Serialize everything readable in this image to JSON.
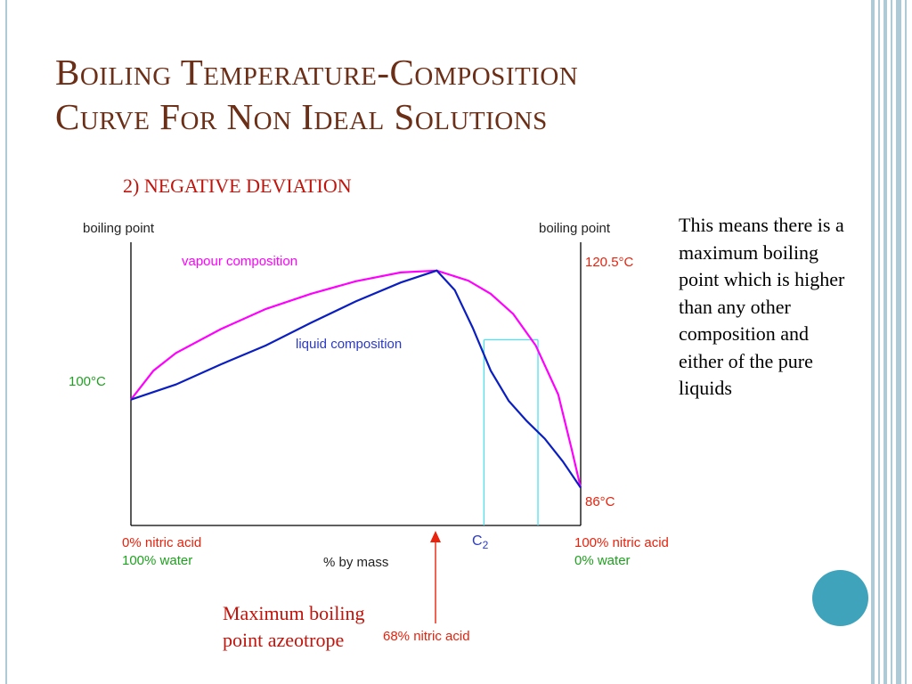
{
  "slide": {
    "title_line1": "Boiling Temperature-Composition",
    "title_line2": "Curve For Non Ideal Solutions",
    "subtitle": "2) NEGATIVE DEVIATION",
    "description": "This means there is a maximum boiling point which is higher than any other composition and either of the pure liquids",
    "annotation": "Maximum boiling point azeotrope"
  },
  "colors": {
    "title": "#6b2e16",
    "accent_red": "#c0140c",
    "vapour_curve": "#ff00ff",
    "liquid_curve": "#0b1fc0",
    "guide_lines": "#4ee0f0",
    "label_green": "#20a020",
    "label_red": "#e8220c",
    "label_blue": "#2a3ac8",
    "frame": "#aecad6",
    "decor_circle": "#3ea3bb"
  },
  "chart_data": {
    "type": "line",
    "x_unit": "% nitric acid by mass",
    "xlim": [
      0,
      100
    ],
    "ylim": [
      80,
      125
    ],
    "series": [
      {
        "name": "vapour composition",
        "points": [
          [
            0,
            100
          ],
          [
            5,
            104.6
          ],
          [
            10,
            107.4
          ],
          [
            20,
            111.2
          ],
          [
            30,
            114.4
          ],
          [
            40,
            116.8
          ],
          [
            50,
            118.8
          ],
          [
            60,
            120.2
          ],
          [
            68,
            120.5
          ],
          [
            75,
            118.9
          ],
          [
            80,
            116.8
          ],
          [
            85,
            113.6
          ],
          [
            90,
            108.6
          ],
          [
            95,
            100.8
          ],
          [
            98,
            92.1
          ],
          [
            100,
            86
          ]
        ]
      },
      {
        "name": "liquid composition",
        "points": [
          [
            0,
            100
          ],
          [
            10,
            102.4
          ],
          [
            20,
            105.6
          ],
          [
            30,
            108.6
          ],
          [
            40,
            112.2
          ],
          [
            50,
            115.6
          ],
          [
            60,
            118.6
          ],
          [
            68,
            120.5
          ],
          [
            72,
            117.4
          ],
          [
            76,
            111.4
          ],
          [
            80,
            104.6
          ],
          [
            84,
            99.8
          ],
          [
            88,
            96.6
          ],
          [
            92,
            93.8
          ],
          [
            96,
            90.2
          ],
          [
            100,
            86
          ]
        ]
      }
    ],
    "annotations": {
      "y_label_left": "boiling point",
      "y_label_right": "boiling point",
      "left_temp": "100°C",
      "right_top_temp": "120.5°C",
      "right_bottom_temp": "86°C",
      "x_left_line1": "0% nitric acid",
      "x_left_line2": "100% water",
      "x_right_line1": "100% nitric acid",
      "x_right_line2": "0% water",
      "x_axis_label": "% by mass",
      "c2_main": "C",
      "c2_sub": "2",
      "azeotrope_label": "68% nitric acid",
      "vapour_label": "vapour composition",
      "liquid_label": "liquid composition"
    },
    "azeotrope": {
      "x": 68,
      "y": 120.5
    },
    "tie_line": {
      "liquid_x": 78.5,
      "vapour_x": 90.5,
      "y": 109.5
    }
  }
}
